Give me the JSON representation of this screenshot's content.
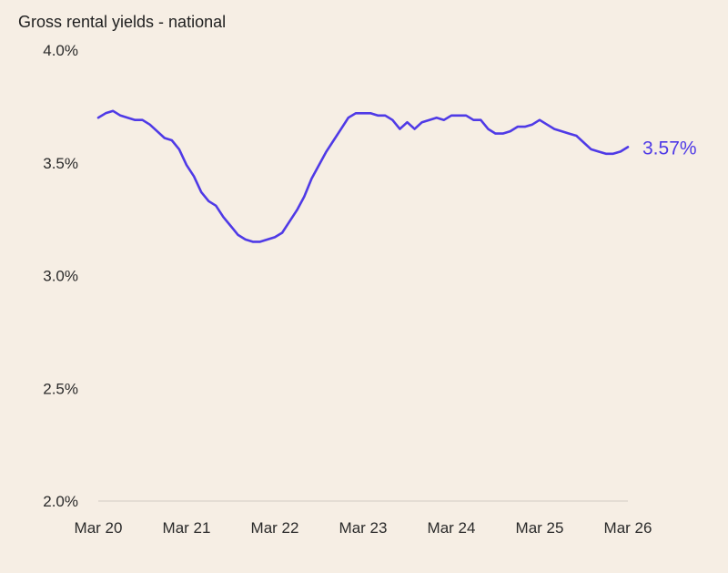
{
  "chart_data": {
    "type": "line",
    "title": "Gross rental yields - national",
    "xlabel": "",
    "ylabel": "",
    "ylim": [
      2.0,
      4.0
    ],
    "y_ticks": [
      "2.0%",
      "2.5%",
      "3.0%",
      "3.5%",
      "4.0%"
    ],
    "y_tick_values": [
      2.0,
      2.5,
      3.0,
      3.5,
      4.0
    ],
    "x_ticks": [
      "Mar 20",
      "Mar 21",
      "Mar 22",
      "Mar 23",
      "Mar 24",
      "Mar 25",
      "Mar 26"
    ],
    "x": [
      "Mar 20",
      "Apr 20",
      "May 20",
      "Jun 20",
      "Jul 20",
      "Aug 20",
      "Sep 20",
      "Oct 20",
      "Nov 20",
      "Dec 20",
      "Jan 21",
      "Feb 21",
      "Mar 21",
      "Apr 21",
      "May 21",
      "Jun 21",
      "Jul 21",
      "Aug 21",
      "Sep 21",
      "Oct 21",
      "Nov 21",
      "Dec 21",
      "Jan 22",
      "Feb 22",
      "Mar 22",
      "Apr 22",
      "May 22",
      "Jun 22",
      "Jul 22",
      "Aug 22",
      "Sep 22",
      "Oct 22",
      "Nov 22",
      "Dec 22",
      "Jan 23",
      "Feb 23",
      "Mar 23",
      "Apr 23",
      "May 23",
      "Jun 23",
      "Jul 23",
      "Aug 23",
      "Sep 23",
      "Oct 23",
      "Nov 23",
      "Dec 23",
      "Jan 24",
      "Feb 24",
      "Mar 24",
      "Apr 24",
      "May 24",
      "Jun 24",
      "Jul 24",
      "Aug 24",
      "Sep 24",
      "Oct 24",
      "Nov 24",
      "Dec 24",
      "Jan 25",
      "Feb 25",
      "Mar 25",
      "Apr 25",
      "May 25",
      "Jun 25",
      "Jul 25",
      "Aug 25",
      "Sep 25",
      "Oct 25",
      "Nov 25",
      "Dec 25",
      "Jan 26",
      "Feb 26",
      "Mar 26"
    ],
    "series": [
      {
        "values": [
          3.7,
          3.72,
          3.73,
          3.71,
          3.7,
          3.69,
          3.69,
          3.67,
          3.64,
          3.61,
          3.6,
          3.56,
          3.49,
          3.44,
          3.37,
          3.33,
          3.31,
          3.26,
          3.22,
          3.18,
          3.16,
          3.15,
          3.15,
          3.16,
          3.17,
          3.19,
          3.24,
          3.29,
          3.35,
          3.43,
          3.49,
          3.55,
          3.6,
          3.65,
          3.7,
          3.72,
          3.72,
          3.72,
          3.71,
          3.71,
          3.69,
          3.65,
          3.68,
          3.65,
          3.68,
          3.69,
          3.7,
          3.69,
          3.71,
          3.71,
          3.71,
          3.69,
          3.69,
          3.65,
          3.63,
          3.63,
          3.64,
          3.66,
          3.66,
          3.67,
          3.69,
          3.67,
          3.65,
          3.64,
          3.63,
          3.62,
          3.59,
          3.56,
          3.55,
          3.54,
          3.54,
          3.55,
          3.57
        ],
        "color": "#4f3ae6"
      }
    ],
    "end_label": "3.57%",
    "grid": false,
    "legend": "none"
  },
  "colors": {
    "background": "#f6eee4",
    "line": "#4f3ae6",
    "baseline": "#d3ccc3",
    "text": "#2a2a2a"
  }
}
